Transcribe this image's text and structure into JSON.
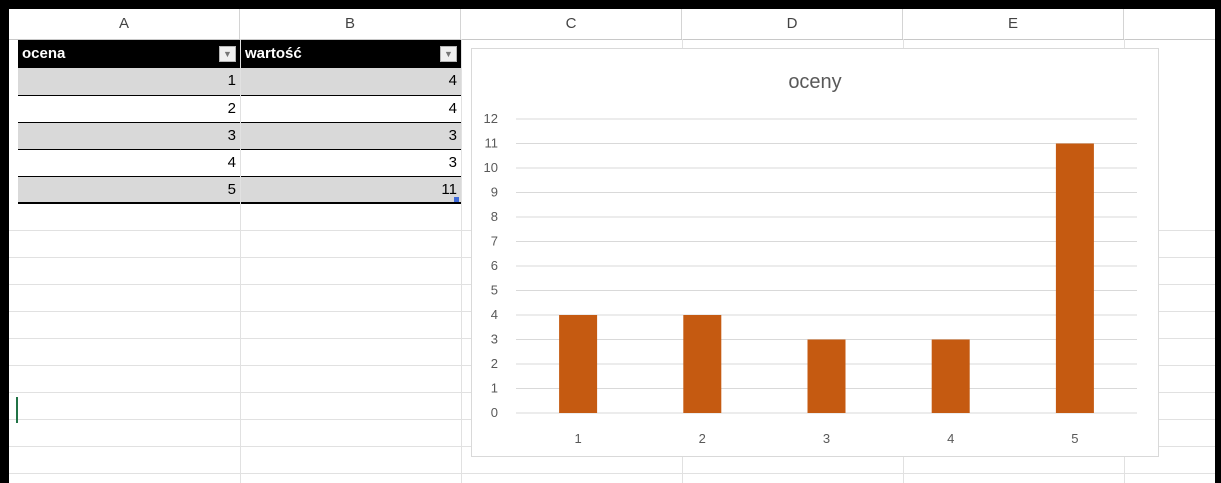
{
  "columns": [
    "A",
    "B",
    "C",
    "D",
    "E"
  ],
  "table": {
    "headers": [
      "ocena",
      "wartość"
    ],
    "rows": [
      {
        "ocena": "1",
        "wartosc": "4"
      },
      {
        "ocena": "2",
        "wartosc": "4"
      },
      {
        "ocena": "3",
        "wartosc": "3"
      },
      {
        "ocena": "4",
        "wartosc": "3"
      },
      {
        "ocena": "5",
        "wartosc": "11"
      }
    ]
  },
  "chart_data": {
    "type": "bar",
    "title": "oceny",
    "categories": [
      "1",
      "2",
      "3",
      "4",
      "5"
    ],
    "values": [
      4,
      4,
      3,
      3,
      11
    ],
    "ylim": [
      0,
      12
    ],
    "yticks": [
      "0",
      "1",
      "2",
      "3",
      "4",
      "5",
      "6",
      "7",
      "8",
      "9",
      "10",
      "11",
      "12"
    ],
    "bar_color": "#c55a11",
    "grid": true,
    "xlabel": "",
    "ylabel": ""
  },
  "colors": {
    "header_bg": "#000000",
    "band_gray": "#d9d9d9"
  }
}
